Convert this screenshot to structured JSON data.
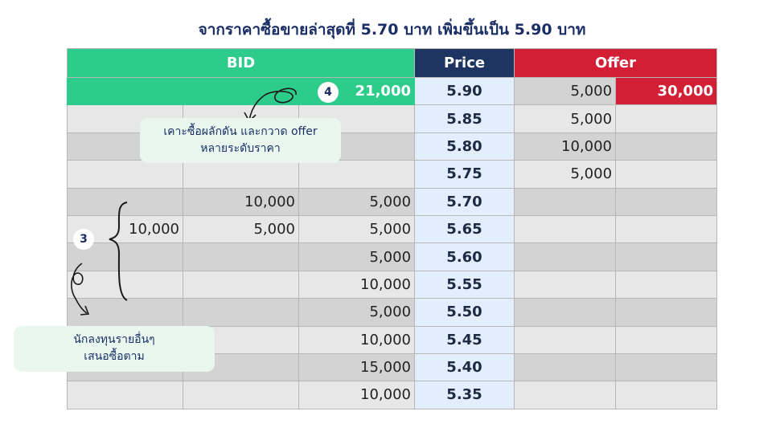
{
  "title": "จากราคาซื้อขายล่าสุดที่ 5.70 บาท เพิ่มขึ้นเป็น 5.90 บาท",
  "headers": {
    "bid": "BID",
    "price": "Price",
    "offer": "Offer"
  },
  "rows": [
    {
      "b1": "",
      "b2": "",
      "b3": "21,000",
      "price": "5.90",
      "o1": "5,000",
      "o2": "30,000"
    },
    {
      "b1": "",
      "b2": "",
      "b3": "",
      "price": "5.85",
      "o1": "5,000",
      "o2": ""
    },
    {
      "b1": "",
      "b2": "",
      "b3": "",
      "price": "5.80",
      "o1": "10,000",
      "o2": ""
    },
    {
      "b1": "",
      "b2": "",
      "b3": "",
      "price": "5.75",
      "o1": "5,000",
      "o2": ""
    },
    {
      "b1": "",
      "b2": "10,000",
      "b3": "5,000",
      "price": "5.70",
      "o1": "",
      "o2": ""
    },
    {
      "b1": "10,000",
      "b2": "5,000",
      "b3": "5,000",
      "price": "5.65",
      "o1": "",
      "o2": ""
    },
    {
      "b1": "",
      "b2": "",
      "b3": "5,000",
      "price": "5.60",
      "o1": "",
      "o2": ""
    },
    {
      "b1": "",
      "b2": "",
      "b3": "10,000",
      "price": "5.55",
      "o1": "",
      "o2": ""
    },
    {
      "b1": "",
      "b2": "",
      "b3": "5,000",
      "price": "5.50",
      "o1": "",
      "o2": ""
    },
    {
      "b1": "",
      "b2": "",
      "b3": "10,000",
      "price": "5.45",
      "o1": "",
      "o2": ""
    },
    {
      "b1": "",
      "b2": "",
      "b3": "15,000",
      "price": "5.40",
      "o1": "",
      "o2": ""
    },
    {
      "b1": "",
      "b2": "",
      "b3": "10,000",
      "price": "5.35",
      "o1": "",
      "o2": ""
    }
  ],
  "annotations": {
    "badge4": "4",
    "badge3": "3",
    "note_top": [
      "เคาะซื้อผลักดัน และกวาด offer",
      "หลายระดับราคา"
    ],
    "note_bottom": [
      "นักลงทุนรายอื่นๆ",
      "เสนอซื้อตาม"
    ]
  },
  "colors": {
    "bid": "#2ecc8a",
    "price_header": "#1e3461",
    "offer": "#d21f35",
    "price_cell": "#e2eefb"
  }
}
